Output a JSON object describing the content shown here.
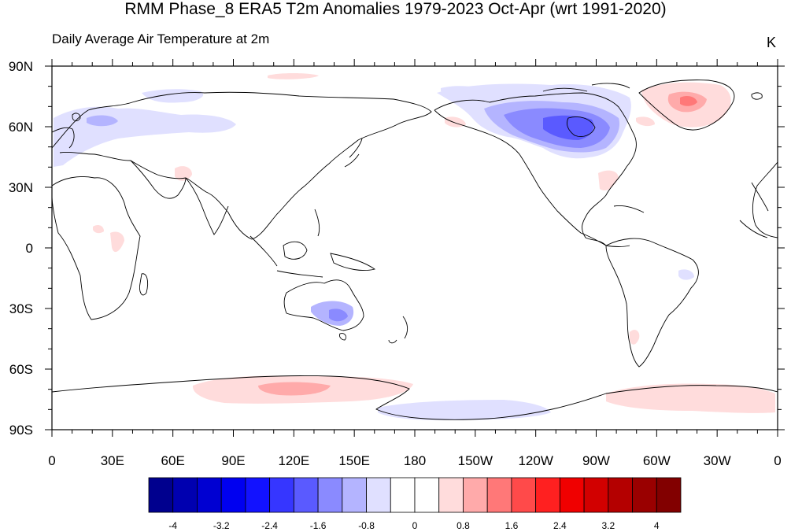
{
  "title": "RMM Phase_8 ERA5 T2m Anomalies 1979-2023 Oct-Apr (wrt 1991-2020)",
  "subtitle": "Daily Average Air Temperature at 2m",
  "units": "K",
  "map": {
    "lat_labels": [
      "90N",
      "60N",
      "30N",
      "0",
      "30S",
      "60S",
      "90S"
    ],
    "lon_labels": [
      "0",
      "30E",
      "60E",
      "90E",
      "120E",
      "150E",
      "180",
      "150W",
      "120W",
      "90W",
      "60W",
      "30W",
      "0"
    ]
  },
  "colorbar": {
    "labels": [
      "-4",
      "-3.2",
      "-2.4",
      "-1.6",
      "-0.8",
      "0",
      "0.8",
      "1.6",
      "2.4",
      "3.2",
      "4"
    ],
    "colors": [
      "#00008e",
      "#0000b0",
      "#0000d2",
      "#0000f0",
      "#1212ff",
      "#3636ff",
      "#5a5aff",
      "#8a8aff",
      "#b4b4ff",
      "#e0e0ff",
      "#ffffff",
      "#ffffff",
      "#ffdcdc",
      "#ffaaaa",
      "#ff7878",
      "#ff4a4a",
      "#ff2020",
      "#f00000",
      "#d20000",
      "#b40000",
      "#9a0000",
      "#820000"
    ]
  }
}
